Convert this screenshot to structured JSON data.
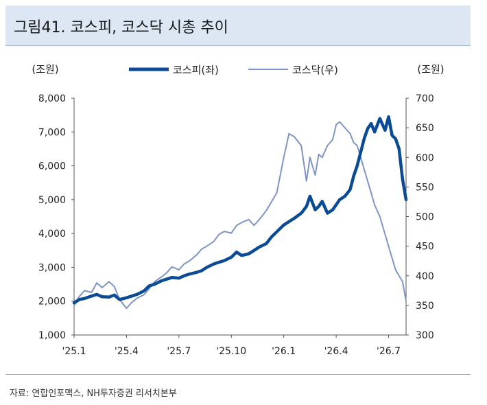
{
  "title": "그림41. 코스피, 코스닥 시총 추이",
  "source": "자료: 연합인포맥스, NH투자증권 리서치본부",
  "chart_data": {
    "type": "line",
    "left_unit": "(조원)",
    "right_unit": "(조원)",
    "left_ticks": [
      "1,000",
      "2,000",
      "3,000",
      "4,000",
      "5,000",
      "6,000",
      "7,000",
      "8,000"
    ],
    "right_ticks": [
      "300",
      "350",
      "400",
      "450",
      "500",
      "550",
      "600",
      "650",
      "700"
    ],
    "x_ticks": [
      "'25.1",
      "'25.4",
      "'25.7",
      "'25.10",
      "'26.1",
      "'26.4",
      "'26.7"
    ],
    "left_ylim": [
      1000,
      8000
    ],
    "right_ylim": [
      300,
      700
    ],
    "x_range": [
      "'25.1",
      "'26.8"
    ],
    "series": [
      {
        "name": "코스피(좌)",
        "axis": "left",
        "color": "#0b4a94",
        "x": [
          0,
          0.3,
          0.6,
          1,
          1.3,
          1.6,
          2,
          2.3,
          2.6,
          3,
          3.3,
          3.6,
          3.8,
          4,
          4.3,
          4.6,
          5,
          5.3,
          5.6,
          6,
          6.3,
          6.6,
          7,
          7.3,
          7.6,
          8,
          8.3,
          8.6,
          9,
          9.3,
          9.6,
          10,
          10.3,
          10.6,
          11,
          11.3,
          11.6,
          12,
          12.3,
          12.6,
          13,
          13.3,
          13.5,
          13.8,
          14,
          14.2,
          14.5,
          14.8,
          15,
          15.2,
          15.5,
          15.8,
          16,
          16.2,
          16.4,
          16.6,
          16.8,
          17,
          17.2,
          17.5,
          17.8,
          18,
          18.2,
          18.4,
          18.6,
          18.8,
          19
        ],
        "y": [
          1950,
          2050,
          2080,
          2150,
          2200,
          2130,
          2120,
          2180,
          2050,
          2100,
          2150,
          2200,
          2250,
          2300,
          2450,
          2500,
          2600,
          2650,
          2700,
          2680,
          2750,
          2800,
          2850,
          2900,
          3000,
          3100,
          3150,
          3200,
          3300,
          3450,
          3350,
          3400,
          3500,
          3600,
          3700,
          3900,
          4050,
          4250,
          4350,
          4450,
          4600,
          4800,
          5100,
          4700,
          4800,
          4950,
          4600,
          4700,
          4850,
          5000,
          5100,
          5300,
          5700,
          6000,
          6400,
          6800,
          7100,
          7250,
          7000,
          7400,
          7050,
          7450,
          6900,
          6800,
          6500,
          5600,
          5000
        ]
      },
      {
        "name": "코스닥(우)",
        "axis": "right",
        "color": "#7d95c6",
        "x": [
          0,
          0.3,
          0.6,
          1,
          1.3,
          1.6,
          2,
          2.3,
          2.6,
          3,
          3.3,
          3.6,
          3.8,
          4,
          4.3,
          4.6,
          5,
          5.3,
          5.6,
          6,
          6.3,
          6.6,
          7,
          7.3,
          7.6,
          8,
          8.3,
          8.6,
          9,
          9.3,
          9.6,
          10,
          10.3,
          10.6,
          11,
          11.3,
          11.6,
          12,
          12.3,
          12.6,
          13,
          13.3,
          13.5,
          13.8,
          14,
          14.2,
          14.5,
          14.8,
          15,
          15.2,
          15.5,
          15.8,
          16,
          16.2,
          16.4,
          16.6,
          16.8,
          17,
          17.2,
          17.5,
          17.8,
          18,
          18.2,
          18.4,
          18.6,
          18.8,
          19
        ],
        "y": [
          350,
          365,
          375,
          372,
          388,
          380,
          390,
          382,
          360,
          345,
          355,
          362,
          365,
          368,
          378,
          390,
          398,
          405,
          415,
          410,
          420,
          425,
          435,
          445,
          450,
          458,
          470,
          475,
          472,
          485,
          490,
          495,
          485,
          495,
          510,
          525,
          540,
          600,
          640,
          635,
          620,
          560,
          600,
          570,
          605,
          600,
          620,
          630,
          655,
          660,
          650,
          640,
          625,
          620,
          600,
          580,
          560,
          540,
          520,
          500,
          470,
          450,
          430,
          410,
          400,
          390,
          357
        ]
      }
    ]
  }
}
